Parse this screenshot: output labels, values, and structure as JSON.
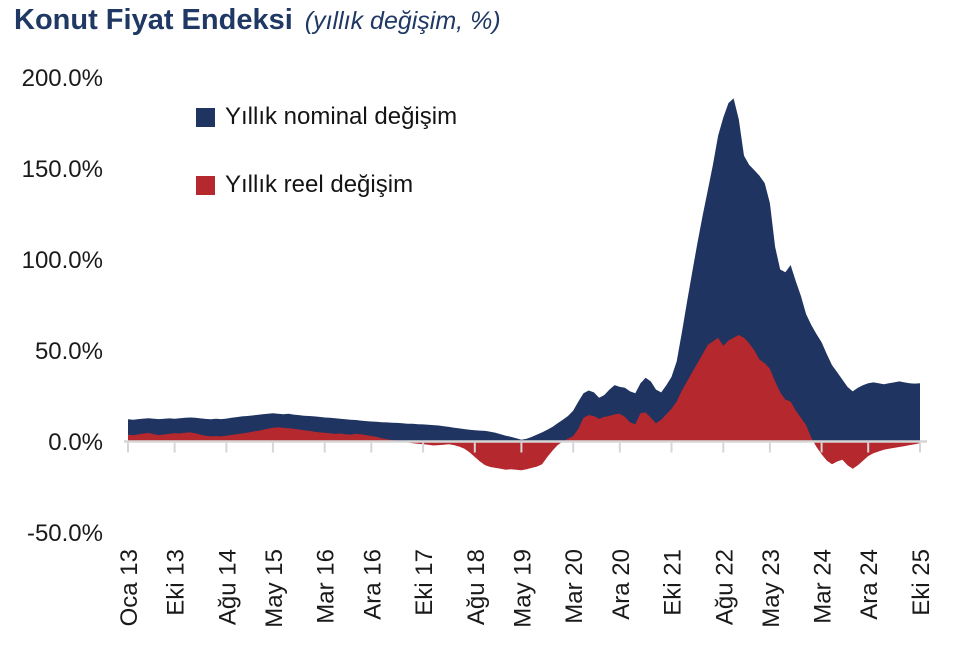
{
  "title": {
    "main": "Konut Fiyat Endeksi",
    "subtitle": "(yıllık değişim, %)"
  },
  "legend": [
    {
      "label": "Yıllık nominal değişim",
      "color": "#1f3461"
    },
    {
      "label": "Yıllık reel değişim",
      "color": "#b4282e"
    }
  ],
  "colors": {
    "title": "#1f3864",
    "axis": "#d6d6d6",
    "tick_text": "#1a1a1a"
  },
  "chart_data": {
    "type": "area",
    "title": "Konut Fiyat Endeksi (yıllık değişim, %)",
    "x_unit": "month",
    "x_range": [
      "Oca 13",
      "Eki 25"
    ],
    "x_tick_labels": [
      "Oca 13",
      "Eki 13",
      "Ağu 14",
      "May 15",
      "Mar 16",
      "Ara 16",
      "Eki 17",
      "Ağu 18",
      "May 19",
      "Mar 20",
      "Ara 20",
      "Eki 21",
      "Ağu 22",
      "May 23",
      "Mar 24",
      "Ara 24",
      "Eki 25"
    ],
    "x_tick_month_index": [
      0,
      9,
      19,
      28,
      38,
      47,
      57,
      67,
      76,
      86,
      95,
      105,
      115,
      124,
      134,
      143,
      153
    ],
    "y_tick_labels": [
      "200.0%",
      "150.0%",
      "100.0%",
      "50.0%",
      "0.0%",
      "-50.0%"
    ],
    "y_tick_values": [
      200,
      150,
      100,
      50,
      0,
      -50
    ],
    "ylim": [
      -50,
      200
    ],
    "grid": false,
    "legend_position": "top-left-inside",
    "baseline": 0,
    "series": [
      {
        "name": "Yıllık nominal değişim",
        "color": "#1f3461",
        "values": [
          12.2,
          12.0,
          12.3,
          12.6,
          12.8,
          12.5,
          12.3,
          12.5,
          12.7,
          12.5,
          12.8,
          13.0,
          13.2,
          13.0,
          12.7,
          12.4,
          12.2,
          12.5,
          12.3,
          12.6,
          13.0,
          13.4,
          13.8,
          14.0,
          14.3,
          14.6,
          15.0,
          15.2,
          15.5,
          15.3,
          15.0,
          15.2,
          14.8,
          14.5,
          14.2,
          14.0,
          13.8,
          13.5,
          13.2,
          13.0,
          12.8,
          12.5,
          12.2,
          12.0,
          11.8,
          11.5,
          11.2,
          11.0,
          10.8,
          10.6,
          10.5,
          10.3,
          10.2,
          10.0,
          9.8,
          9.7,
          9.5,
          9.4,
          9.2,
          9.0,
          8.8,
          8.4,
          8.0,
          7.6,
          7.2,
          6.8,
          6.5,
          6.2,
          6.0,
          5.8,
          5.4,
          4.8,
          4.0,
          3.2,
          2.5,
          1.8,
          1.0,
          1.5,
          2.5,
          3.8,
          5.0,
          6.5,
          8.0,
          10.0,
          12.0,
          14.0,
          17.0,
          22.0,
          26.5,
          28.0,
          27.0,
          24.0,
          25.5,
          28.5,
          31.0,
          30.0,
          29.5,
          27.5,
          26.5,
          32.0,
          35.0,
          33.0,
          28.5,
          27.0,
          31.0,
          35.5,
          44.0,
          60.0,
          77.0,
          93.0,
          109.0,
          124.0,
          138.0,
          152.0,
          168.0,
          178.0,
          186.0,
          188.5,
          177.0,
          157.0,
          152.0,
          149.0,
          146.0,
          142.0,
          131.0,
          107.0,
          94.5,
          93.0,
          97.0,
          88.0,
          80.0,
          70.0,
          64.0,
          59.0,
          54.5,
          48.0,
          42.0,
          38.0,
          34.0,
          30.0,
          27.5,
          29.5,
          31.0,
          32.0,
          32.5,
          32.0,
          31.5,
          32.0,
          32.5,
          33.0,
          32.5,
          32.0,
          31.8,
          32.0
        ]
      },
      {
        "name": "Yıllık reel değişim",
        "color": "#b4282e",
        "values": [
          3.8,
          3.4,
          3.9,
          4.4,
          4.7,
          4.0,
          3.5,
          3.9,
          4.2,
          4.6,
          4.4,
          4.8,
          5.0,
          4.5,
          3.8,
          3.2,
          2.8,
          3.0,
          2.8,
          3.2,
          3.6,
          4.0,
          4.4,
          4.8,
          5.4,
          5.8,
          6.4,
          7.0,
          7.6,
          7.8,
          7.5,
          7.3,
          7.0,
          6.6,
          6.2,
          5.8,
          5.4,
          5.0,
          4.8,
          4.5,
          4.2,
          4.4,
          4.0,
          3.8,
          4.2,
          4.0,
          3.5,
          3.0,
          2.5,
          1.8,
          1.2,
          0.8,
          0.4,
          0.0,
          -0.5,
          -1.0,
          -1.2,
          -1.5,
          -1.8,
          -2.2,
          -2.0,
          -1.8,
          -1.5,
          -2.0,
          -2.8,
          -4.0,
          -6.0,
          -8.5,
          -11.0,
          -13.0,
          -14.0,
          -14.5,
          -15.0,
          -15.5,
          -15.2,
          -15.5,
          -15.8,
          -15.2,
          -14.5,
          -13.8,
          -12.5,
          -8.5,
          -5.0,
          -2.0,
          0.0,
          1.5,
          3.0,
          7.0,
          13.0,
          14.5,
          14.0,
          12.5,
          13.5,
          14.0,
          15.0,
          15.2,
          13.5,
          10.5,
          9.5,
          15.5,
          16.0,
          13.0,
          10.0,
          12.0,
          15.0,
          18.0,
          22.0,
          28.0,
          33.0,
          38.0,
          43.0,
          48.0,
          53.0,
          55.0,
          57.0,
          52.5,
          55.5,
          57.0,
          58.5,
          57.0,
          54.0,
          50.0,
          45.0,
          43.0,
          40.0,
          33.0,
          27.0,
          23.0,
          22.0,
          17.0,
          13.0,
          9.0,
          2.0,
          -3.0,
          -7.0,
          -10.5,
          -12.5,
          -11.0,
          -10.0,
          -13.0,
          -15.0,
          -13.0,
          -10.5,
          -8.0,
          -6.5,
          -5.5,
          -4.5,
          -4.0,
          -3.5,
          -3.0,
          -2.5,
          -2.0,
          -1.5,
          -1.0
        ]
      }
    ]
  }
}
